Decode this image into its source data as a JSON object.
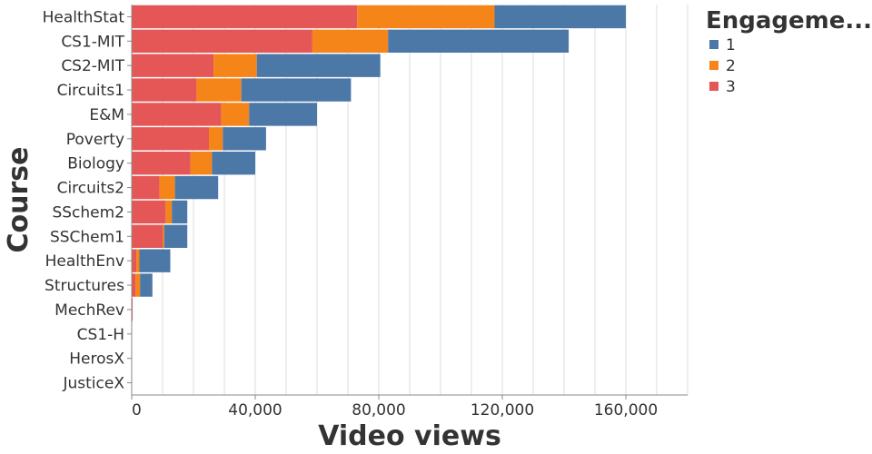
{
  "chart_data": {
    "type": "bar",
    "orientation": "horizontal",
    "stacked": true,
    "xlabel": "Video views",
    "ylabel": "Course",
    "xlim": [
      0,
      180000
    ],
    "x_ticks": [
      0,
      40000,
      80000,
      120000,
      160000
    ],
    "x_tick_labels": [
      "0",
      "40,000",
      "80,000",
      "120,000",
      "160,000"
    ],
    "grid": true,
    "legend": {
      "title": "Engageme...",
      "position": "right",
      "entries": [
        {
          "label": "1",
          "color": "#4c78a8"
        },
        {
          "label": "2",
          "color": "#f58518"
        },
        {
          "label": "3",
          "color": "#e45756"
        }
      ]
    },
    "categories": [
      "HealthStat",
      "CS1-MIT",
      "CS2-MIT",
      "Circuits1",
      "E&M",
      "Poverty",
      "Biology",
      "Circuits2",
      "SSchem2",
      "SSChem1",
      "HealthEnv",
      "Structures",
      "MechRev",
      "CS1-H",
      "HerosX",
      "JusticeX"
    ],
    "series": [
      {
        "name": "3",
        "color": "#e45756",
        "values": [
          73000,
          58500,
          26500,
          21000,
          29000,
          25000,
          19000,
          9000,
          11000,
          10000,
          1500,
          1200,
          300,
          0,
          0,
          0
        ]
      },
      {
        "name": "2",
        "color": "#f58518",
        "values": [
          44500,
          24500,
          14000,
          14500,
          9000,
          4500,
          7000,
          5000,
          2000,
          500,
          1000,
          1500,
          0,
          0,
          0,
          0
        ]
      },
      {
        "name": "1",
        "color": "#4c78a8",
        "values": [
          42500,
          58500,
          40000,
          35500,
          22000,
          14000,
          14000,
          14000,
          5000,
          7500,
          10000,
          4000,
          0,
          0,
          0,
          0
        ]
      }
    ]
  }
}
